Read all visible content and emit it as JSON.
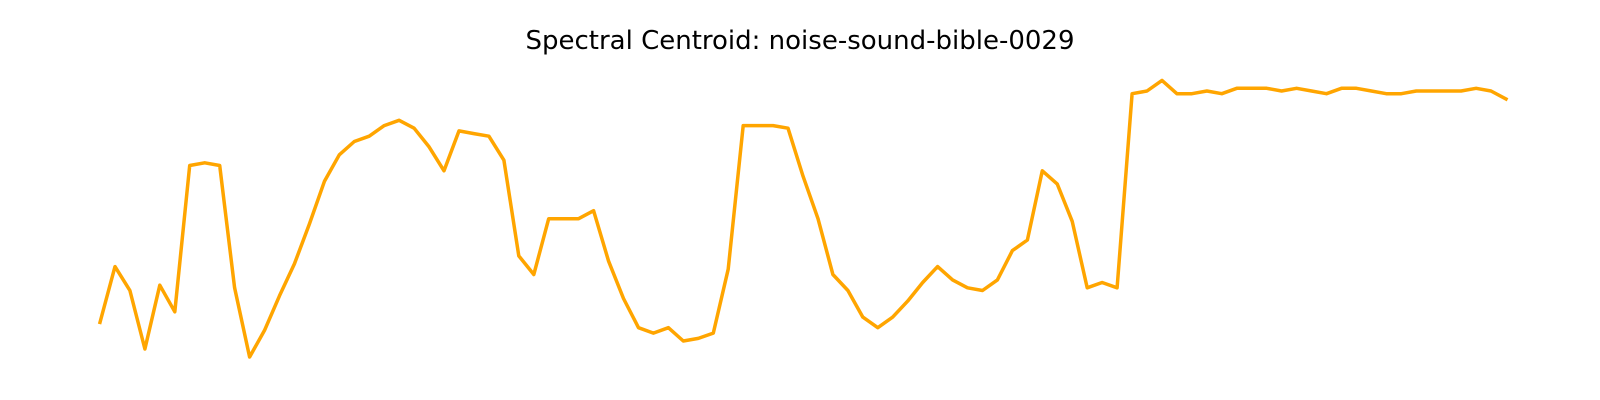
{
  "chart_data": {
    "type": "line",
    "title": "Spectral Centroid: noise-sound-bible-0029",
    "xlabel": "",
    "ylabel": "",
    "axes_visible": false,
    "grid": false,
    "legend": "none",
    "series": [
      {
        "color": "#FFA500",
        "values": [
          0.13,
          0.34,
          0.25,
          0.03,
          0.27,
          0.17,
          0.72,
          0.73,
          0.72,
          0.26,
          0.0,
          0.1,
          0.23,
          0.35,
          0.5,
          0.66,
          0.76,
          0.81,
          0.83,
          0.87,
          0.89,
          0.86,
          0.79,
          0.7,
          0.85,
          0.84,
          0.83,
          0.74,
          0.38,
          0.31,
          0.52,
          0.52,
          0.52,
          0.55,
          0.36,
          0.22,
          0.11,
          0.09,
          0.11,
          0.06,
          0.07,
          0.09,
          0.33,
          0.87,
          0.87,
          0.87,
          0.86,
          0.68,
          0.52,
          0.31,
          0.25,
          0.15,
          0.11,
          0.15,
          0.21,
          0.28,
          0.34,
          0.29,
          0.26,
          0.25,
          0.29,
          0.4,
          0.44,
          0.7,
          0.65,
          0.51,
          0.26,
          0.28,
          0.26,
          0.99,
          1.0,
          1.04,
          0.99,
          0.99,
          1.0,
          0.99,
          1.01,
          1.01,
          1.01,
          1.0,
          1.01,
          1.0,
          0.99,
          1.01,
          1.01,
          1.0,
          0.99,
          0.99,
          1.0,
          1.0,
          1.0,
          1.0,
          1.01,
          1.0,
          0.97
        ]
      }
    ]
  }
}
